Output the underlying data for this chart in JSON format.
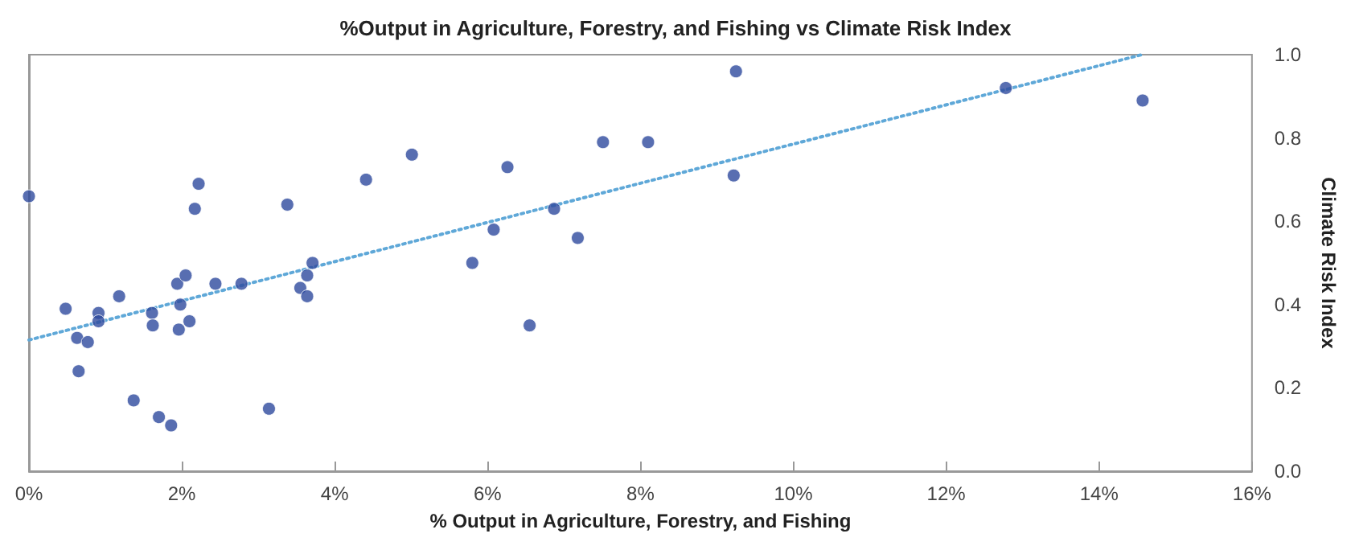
{
  "chart_data": {
    "type": "scatter",
    "title": "%Output in Agriculture, Forestry, and Fishing vs Climate Risk Index",
    "xlabel": "% Output in Agriculture, Forestry, and Fishing",
    "ylabel": "Climate Risk Index",
    "xlim": [
      0,
      16
    ],
    "xticks": [
      {
        "value": 0,
        "label": "0%"
      },
      {
        "value": 2,
        "label": "2%"
      },
      {
        "value": 4,
        "label": "4%"
      },
      {
        "value": 6,
        "label": "6%"
      },
      {
        "value": 8,
        "label": "8%"
      },
      {
        "value": 10,
        "label": "10%"
      },
      {
        "value": 12,
        "label": "12%"
      },
      {
        "value": 14,
        "label": "14%"
      },
      {
        "value": 16,
        "label": "16%"
      }
    ],
    "ylim": [
      0,
      1
    ],
    "yticks": [
      {
        "value": 0,
        "label": "0.0"
      },
      {
        "value": 0.2,
        "label": "0.2"
      },
      {
        "value": 0.4,
        "label": "0.4"
      },
      {
        "value": 0.6,
        "label": "0.6"
      },
      {
        "value": 0.8,
        "label": "0.8"
      },
      {
        "value": 1,
        "label": "1.0"
      }
    ],
    "grid": false,
    "marker": "circle",
    "series": [
      {
        "color": "#2e4a9e",
        "x": [
          0,
          0.48,
          0.63,
          0.77,
          0.65,
          0.91,
          0.91,
          1.18,
          1.37,
          1.61,
          1.62,
          1.7,
          1.86,
          1.94,
          2.05,
          1.98,
          1.96,
          2.1,
          2.22,
          2.17,
          2.44,
          2.78,
          3.14,
          3.38,
          3.55,
          3.64,
          3.64,
          3.71,
          4.41,
          5.01,
          5.8,
          6.08,
          6.26,
          6.55,
          6.87,
          7.18,
          7.51,
          8.1,
          9.22,
          9.25,
          12.78,
          14.57
        ],
        "values": [
          0.66,
          0.39,
          0.32,
          0.31,
          0.24,
          0.38,
          0.36,
          0.42,
          0.17,
          0.38,
          0.35,
          0.13,
          0.11,
          0.45,
          0.47,
          0.4,
          0.34,
          0.36,
          0.69,
          0.63,
          0.45,
          0.45,
          0.15,
          0.64,
          0.44,
          0.42,
          0.47,
          0.5,
          0.7,
          0.76,
          0.5,
          0.58,
          0.73,
          0.35,
          0.63,
          0.56,
          0.79,
          0.79,
          0.71,
          0.96,
          0.92,
          0.89
        ]
      },
      {
        "type": "line",
        "color": "#5fa8d8",
        "line_style": "dotted",
        "marker": "none",
        "x": [
          0,
          14.56
        ],
        "values": [
          0.315,
          1.0
        ]
      }
    ]
  }
}
